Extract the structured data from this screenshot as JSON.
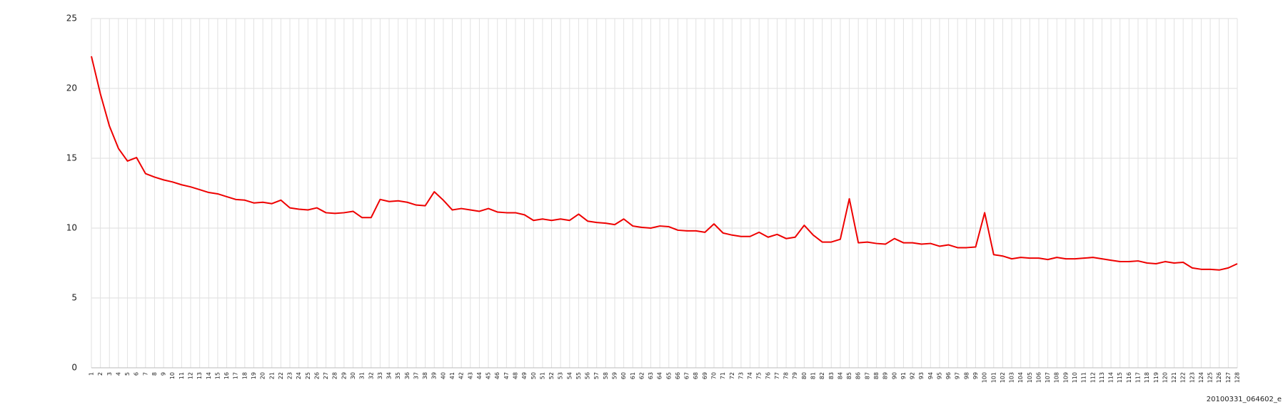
{
  "chart_data": {
    "type": "line",
    "categories": [
      "1",
      "2",
      "3",
      "4",
      "5",
      "6",
      "7",
      "8",
      "9",
      "10",
      "11",
      "12",
      "13",
      "14",
      "15",
      "16",
      "17",
      "18",
      "19",
      "20",
      "21",
      "22",
      "23",
      "24",
      "25",
      "26",
      "27",
      "28",
      "29",
      "30",
      "31",
      "32",
      "33",
      "34",
      "35",
      "36",
      "37",
      "38",
      "39",
      "40",
      "41",
      "42",
      "43",
      "44",
      "45",
      "46",
      "47",
      "48",
      "49",
      "50",
      "51",
      "52",
      "53",
      "54",
      "55",
      "56",
      "57",
      "58",
      "59",
      "60",
      "61",
      "62",
      "63",
      "64",
      "65",
      "66",
      "67",
      "68",
      "69",
      "70",
      "71",
      "72",
      "73",
      "74",
      "75",
      "76",
      "77",
      "78",
      "79",
      "80",
      "81",
      "82",
      "83",
      "84",
      "85",
      "86",
      "87",
      "88",
      "89",
      "90",
      "91",
      "92",
      "93",
      "94",
      "95",
      "96",
      "97",
      "98",
      "99",
      "100",
      "101",
      "102",
      "103",
      "104",
      "105",
      "106",
      "107",
      "108",
      "109",
      "110",
      "111",
      "112",
      "113",
      "114",
      "115",
      "116",
      "117",
      "118",
      "119",
      "120",
      "121",
      "122",
      "123",
      "124",
      "125",
      "126",
      "127",
      "128"
    ],
    "series": [
      {
        "color": "#ee0000",
        "values": [
          22.3,
          19.6,
          17.3,
          15.7,
          14.8,
          15.05,
          13.9,
          13.65,
          13.45,
          13.3,
          13.1,
          12.95,
          12.75,
          12.55,
          12.45,
          12.25,
          12.05,
          12.0,
          11.8,
          11.85,
          11.75,
          12.0,
          11.45,
          11.35,
          11.3,
          11.45,
          11.1,
          11.05,
          11.1,
          11.2,
          10.75,
          10.75,
          12.05,
          11.9,
          11.95,
          11.85,
          11.65,
          11.6,
          12.6,
          12.0,
          11.3,
          11.4,
          11.3,
          11.2,
          11.4,
          11.15,
          11.1,
          11.1,
          10.95,
          10.55,
          10.65,
          10.55,
          10.65,
          10.55,
          11.0,
          10.5,
          10.4,
          10.35,
          10.25,
          10.65,
          10.15,
          10.05,
          10.0,
          10.15,
          10.1,
          9.85,
          9.8,
          9.8,
          9.7,
          10.3,
          9.65,
          9.5,
          9.4,
          9.4,
          9.7,
          9.35,
          9.55,
          9.25,
          9.35,
          10.2,
          9.5,
          9.0,
          9.0,
          9.2,
          12.1,
          8.95,
          9.0,
          8.9,
          8.85,
          9.25,
          8.95,
          8.95,
          8.85,
          8.9,
          8.7,
          8.8,
          8.6,
          8.6,
          8.65,
          11.1,
          8.1,
          8.0,
          7.8,
          7.9,
          7.85,
          7.85,
          7.75,
          7.9,
          7.8,
          7.8,
          7.85,
          7.9,
          7.8,
          7.7,
          7.6,
          7.6,
          7.65,
          7.5,
          7.45,
          7.6,
          7.5,
          7.55,
          7.15,
          7.05,
          7.05,
          7.0,
          7.15,
          7.45
        ]
      }
    ],
    "ylim": [
      0,
      25
    ],
    "yticks": [
      0,
      5,
      10,
      15,
      20,
      25
    ],
    "grid": true,
    "footer": "20100331_064602_e"
  }
}
